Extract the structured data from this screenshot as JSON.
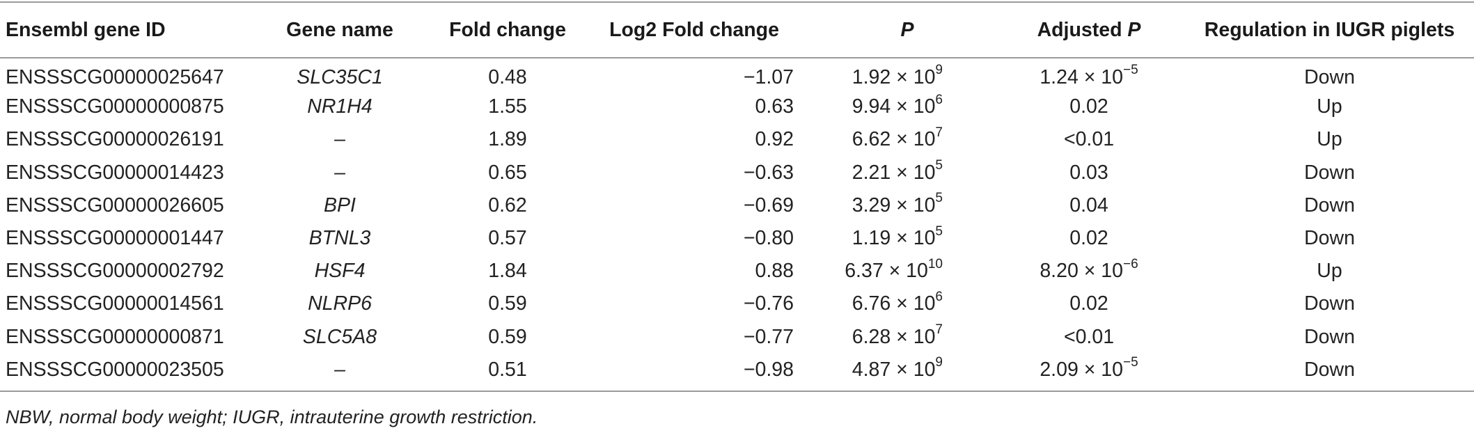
{
  "table": {
    "headers": {
      "ensembl_id": "Ensembl gene ID",
      "gene_name": "Gene name",
      "fold_change": "Fold change",
      "log2_fold_change": "Log2 Fold change",
      "p": "P",
      "adjusted_p_prefix": "Adjusted ",
      "adjusted_p_italic": "P",
      "regulation": "Regulation in IUGR piglets"
    },
    "rows": [
      {
        "id": "ENSSSCG00000025647",
        "gene": "SLC35C1",
        "fc": "0.48",
        "log2fc": "−1.07",
        "p_mant": "1.92 × 10",
        "p_exp": "9",
        "adj_mant": "1.24 × 10",
        "adj_exp": "−5",
        "reg": "Down"
      },
      {
        "id": "ENSSSCG00000000875",
        "gene": "NR1H4",
        "fc": "1.55",
        "log2fc": "0.63",
        "p_mant": "9.94 × 10",
        "p_exp": "6",
        "adj_mant": "0.02",
        "adj_exp": "",
        "reg": "Up"
      },
      {
        "id": "ENSSSCG00000026191",
        "gene": "–",
        "fc": "1.89",
        "log2fc": "0.92",
        "p_mant": "6.62 × 10",
        "p_exp": "7",
        "adj_mant": "<0.01",
        "adj_exp": "",
        "reg": "Up"
      },
      {
        "id": "ENSSSCG00000014423",
        "gene": "–",
        "fc": "0.65",
        "log2fc": "−0.63",
        "p_mant": "2.21 × 10",
        "p_exp": "5",
        "adj_mant": "0.03",
        "adj_exp": "",
        "reg": "Down"
      },
      {
        "id": "ENSSSCG00000026605",
        "gene": "BPI",
        "fc": "0.62",
        "log2fc": "−0.69",
        "p_mant": "3.29 × 10",
        "p_exp": "5",
        "adj_mant": "0.04",
        "adj_exp": "",
        "reg": "Down"
      },
      {
        "id": "ENSSSCG00000001447",
        "gene": "BTNL3",
        "fc": "0.57",
        "log2fc": "−0.80",
        "p_mant": "1.19 × 10",
        "p_exp": "5",
        "adj_mant": "0.02",
        "adj_exp": "",
        "reg": "Down"
      },
      {
        "id": "ENSSSCG00000002792",
        "gene": "HSF4",
        "fc": "1.84",
        "log2fc": "0.88",
        "p_mant": "6.37 × 10",
        "p_exp": "10",
        "adj_mant": "8.20 × 10",
        "adj_exp": "−6",
        "reg": "Up"
      },
      {
        "id": "ENSSSCG00000014561",
        "gene": "NLRP6",
        "fc": "0.59",
        "log2fc": "−0.76",
        "p_mant": "6.76 × 10",
        "p_exp": "6",
        "adj_mant": "0.02",
        "adj_exp": "",
        "reg": "Down"
      },
      {
        "id": "ENSSSCG00000000871",
        "gene": "SLC5A8",
        "fc": "0.59",
        "log2fc": "−0.77",
        "p_mant": "6.28 × 10",
        "p_exp": "7",
        "adj_mant": "<0.01",
        "adj_exp": "",
        "reg": "Down"
      },
      {
        "id": "ENSSSCG00000023505",
        "gene": "–",
        "fc": "0.51",
        "log2fc": "−0.98",
        "p_mant": "4.87 × 10",
        "p_exp": "9",
        "adj_mant": "2.09 × 10",
        "adj_exp": "−5",
        "reg": "Down"
      }
    ]
  },
  "footnote": "NBW, normal body weight; IUGR, intrauterine growth restriction."
}
